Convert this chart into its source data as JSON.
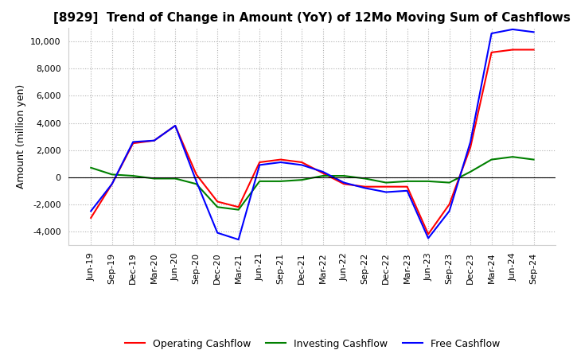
{
  "title": "[8929]  Trend of Change in Amount (YoY) of 12Mo Moving Sum of Cashflows",
  "ylabel": "Amount (million yen)",
  "ylim": [
    -5000,
    11000
  ],
  "yticks": [
    -4000,
    -2000,
    0,
    2000,
    4000,
    6000,
    8000,
    10000
  ],
  "x_labels": [
    "Jun-19",
    "Sep-19",
    "Dec-19",
    "Mar-20",
    "Jun-20",
    "Sep-20",
    "Dec-20",
    "Mar-21",
    "Jun-21",
    "Sep-21",
    "Dec-21",
    "Mar-22",
    "Jun-22",
    "Sep-22",
    "Dec-22",
    "Mar-23",
    "Jun-23",
    "Sep-23",
    "Dec-23",
    "Mar-24",
    "Jun-24",
    "Sep-24"
  ],
  "operating_cashflow": [
    -3000,
    -500,
    2500,
    2700,
    3800,
    200,
    -1800,
    -2200,
    1100,
    1300,
    1100,
    300,
    -500,
    -700,
    -700,
    -700,
    -4200,
    -2000,
    2200,
    9200,
    9400,
    9400
  ],
  "investing_cashflow": [
    700,
    200,
    100,
    -100,
    -100,
    -500,
    -2200,
    -2400,
    -300,
    -300,
    -200,
    100,
    100,
    -100,
    -400,
    -300,
    -300,
    -400,
    400,
    1300,
    1500,
    1300
  ],
  "free_cashflow": [
    -2500,
    -500,
    2600,
    2700,
    3800,
    -300,
    -4100,
    -4600,
    900,
    1100,
    900,
    400,
    -400,
    -800,
    -1100,
    -1000,
    -4500,
    -2500,
    2600,
    10600,
    10900,
    10700
  ],
  "operating_color": "#ff0000",
  "investing_color": "#008000",
  "free_color": "#0000ff",
  "background_color": "#ffffff",
  "grid_color": "#b0b0b0",
  "title_fontsize": 11,
  "tick_fontsize": 8,
  "ylabel_fontsize": 9,
  "legend_fontsize": 9,
  "legend_labels": [
    "Operating Cashflow",
    "Investing Cashflow",
    "Free Cashflow"
  ]
}
